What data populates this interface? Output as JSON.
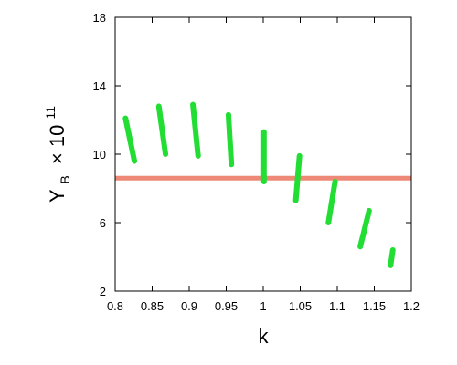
{
  "chart_data": {
    "type": "scatter",
    "title": "",
    "xlabel": "k",
    "ylabel": {
      "main": "Y",
      "subscript": "B",
      "multiplier": "× 10",
      "exponent": "11"
    },
    "xlim": [
      0.8,
      1.2
    ],
    "ylim": [
      2,
      18
    ],
    "xticks": [
      "0.8",
      "0.85",
      "0.9",
      "0.95",
      "1",
      "1.05",
      "1.1",
      "1.15",
      "1.2"
    ],
    "yticks": [
      "2",
      "6",
      "10",
      "14",
      "18"
    ],
    "grid": false,
    "legend": "none",
    "reference_line": {
      "y": 8.6,
      "color": "#ee8877"
    },
    "series_color": "#22dd33",
    "bands": [
      {
        "k_top": 0.814,
        "y_top": 12.1,
        "k_bottom": 0.826,
        "y_bottom": 9.6
      },
      {
        "k_top": 0.859,
        "y_top": 12.8,
        "k_bottom": 0.868,
        "y_bottom": 10.0
      },
      {
        "k_top": 0.905,
        "y_top": 12.9,
        "k_bottom": 0.912,
        "y_bottom": 9.9
      },
      {
        "k_top": 0.953,
        "y_top": 12.3,
        "k_bottom": 0.957,
        "y_bottom": 9.4
      },
      {
        "k_top": 1.001,
        "y_top": 11.3,
        "k_bottom": 1.001,
        "y_bottom": 8.4
      },
      {
        "k_top": 1.049,
        "y_top": 9.9,
        "k_bottom": 1.044,
        "y_bottom": 7.3
      },
      {
        "k_top": 1.097,
        "y_top": 8.4,
        "k_bottom": 1.088,
        "y_bottom": 6.0
      },
      {
        "k_top": 1.143,
        "y_top": 6.7,
        "k_bottom": 1.131,
        "y_bottom": 4.6
      },
      {
        "k_top": 1.175,
        "y_top": 4.4,
        "k_bottom": 1.172,
        "y_bottom": 3.5
      }
    ]
  }
}
